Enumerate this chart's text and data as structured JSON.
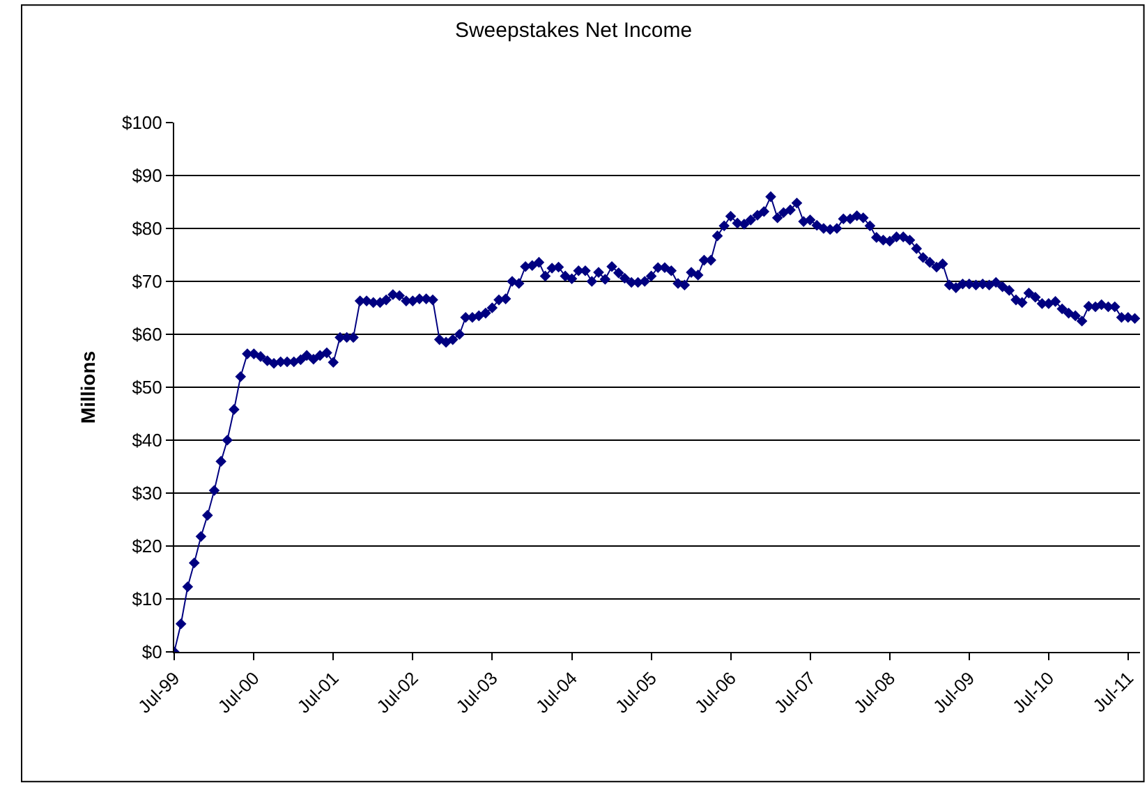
{
  "chart_data": {
    "type": "line",
    "title": "Sweepstakes Net Income",
    "ylabel": "Millions",
    "x": [
      "1999-07",
      "1999-08",
      "1999-09",
      "1999-10",
      "1999-11",
      "1999-12",
      "2000-01",
      "2000-02",
      "2000-03",
      "2000-04",
      "2000-05",
      "2000-06",
      "2000-07",
      "2000-08",
      "2000-09",
      "2000-10",
      "2000-11",
      "2000-12",
      "2001-01",
      "2001-02",
      "2001-03",
      "2001-04",
      "2001-05",
      "2001-06",
      "2001-07",
      "2001-08",
      "2001-09",
      "2001-10",
      "2001-11",
      "2001-12",
      "2002-01",
      "2002-02",
      "2002-03",
      "2002-04",
      "2002-05",
      "2002-06",
      "2002-07",
      "2002-08",
      "2002-09",
      "2002-10",
      "2002-11",
      "2002-12",
      "2003-01",
      "2003-02",
      "2003-03",
      "2003-04",
      "2003-05",
      "2003-06",
      "2003-07",
      "2003-08",
      "2003-09",
      "2003-10",
      "2003-11",
      "2003-12",
      "2004-01",
      "2004-02",
      "2004-03",
      "2004-04",
      "2004-05",
      "2004-06",
      "2004-07",
      "2004-08",
      "2004-09",
      "2004-10",
      "2004-11",
      "2004-12",
      "2005-01",
      "2005-02",
      "2005-03",
      "2005-04",
      "2005-05",
      "2005-06",
      "2005-07",
      "2005-08",
      "2005-09",
      "2005-10",
      "2005-11",
      "2005-12",
      "2006-01",
      "2006-02",
      "2006-03",
      "2006-04",
      "2006-05",
      "2006-06",
      "2006-07",
      "2006-08",
      "2006-09",
      "2006-10",
      "2006-11",
      "2006-12",
      "2007-01",
      "2007-02",
      "2007-03",
      "2007-04",
      "2007-05",
      "2007-06",
      "2007-07",
      "2007-08",
      "2007-09",
      "2007-10",
      "2007-11",
      "2007-12",
      "2008-01",
      "2008-02",
      "2008-03",
      "2008-04",
      "2008-05",
      "2008-06",
      "2008-07",
      "2008-08",
      "2008-09",
      "2008-10",
      "2008-11",
      "2008-12",
      "2009-01",
      "2009-02",
      "2009-03",
      "2009-04",
      "2009-05",
      "2009-06",
      "2009-07",
      "2009-08",
      "2009-09",
      "2009-10",
      "2009-11",
      "2009-12",
      "2010-01",
      "2010-02",
      "2010-03",
      "2010-04",
      "2010-05",
      "2010-06",
      "2010-07",
      "2010-08",
      "2010-09",
      "2010-10",
      "2010-11",
      "2010-12",
      "2011-01",
      "2011-02",
      "2011-03",
      "2011-04",
      "2011-05",
      "2011-06",
      "2011-07",
      "2011-08"
    ],
    "series": [
      {
        "color": "#000080",
        "values": [
          0,
          5.3,
          12.3,
          16.8,
          21.8,
          25.8,
          30.5,
          36,
          40,
          45.8,
          52,
          56.3,
          56.3,
          55.8,
          55,
          54.5,
          54.8,
          54.8,
          54.8,
          55.2,
          56,
          55.3,
          56,
          56.5,
          54.7,
          59.4,
          59.4,
          59.4,
          66.3,
          66.3,
          66,
          66,
          66.5,
          67.5,
          67.3,
          66.3,
          66.3,
          66.7,
          66.7,
          66.5,
          59,
          58.5,
          59,
          60,
          63.2,
          63.2,
          63.5,
          64,
          65,
          66.5,
          66.7,
          70,
          69.6,
          72.8,
          73,
          73.6,
          71,
          72.5,
          72.7,
          71,
          70.5,
          72,
          72,
          70,
          71.7,
          70.4,
          72.8,
          71.6,
          70.6,
          69.8,
          69.8,
          70,
          71,
          72.6,
          72.6,
          72,
          69.6,
          69.3,
          71.7,
          71.2,
          74,
          74,
          78.6,
          80.5,
          82.3,
          81,
          80.8,
          81.6,
          82.5,
          83.2,
          86,
          82,
          83,
          83.5,
          84.8,
          81.3,
          81.6,
          80.6,
          80,
          79.8,
          80,
          81.8,
          81.8,
          82.4,
          82,
          80.5,
          78.3,
          77.8,
          77.6,
          78.4,
          78.4,
          77.8,
          76.2,
          74.5,
          73.6,
          72.7,
          73.3,
          69.3,
          68.8,
          69.5,
          69.5,
          69.3,
          69.5,
          69.3,
          69.8,
          69,
          68.3,
          66.5,
          66,
          67.8,
          67,
          65.8,
          65.8,
          66.2,
          64.8,
          64,
          63.5,
          62.5,
          65.3,
          65.2,
          65.6,
          65.2,
          65.2,
          63.2,
          63.2,
          63
        ]
      }
    ],
    "xlim": [
      "1999-07-01",
      "2011-08-25"
    ],
    "xticks": [
      {
        "value": "1999-07-01",
        "label": "Jul-99"
      },
      {
        "value": "2000-07-01",
        "label": "Jul-00"
      },
      {
        "value": "2001-07-01",
        "label": "Jul-01"
      },
      {
        "value": "2002-07-01",
        "label": "Jul-02"
      },
      {
        "value": "2003-07-01",
        "label": "Jul-03"
      },
      {
        "value": "2004-07-01",
        "label": "Jul-04"
      },
      {
        "value": "2005-07-01",
        "label": "Jul-05"
      },
      {
        "value": "2006-07-01",
        "label": "Jul-06"
      },
      {
        "value": "2007-07-01",
        "label": "Jul-07"
      },
      {
        "value": "2008-07-01",
        "label": "Jul-08"
      },
      {
        "value": "2009-07-01",
        "label": "Jul-09"
      },
      {
        "value": "2010-07-01",
        "label": "Jul-10"
      },
      {
        "value": "2011-07-01",
        "label": "Jul-11"
      }
    ],
    "ylim": [
      0,
      100
    ],
    "yticks": [
      {
        "value": 0,
        "label": "$0"
      },
      {
        "value": 10,
        "label": "$10"
      },
      {
        "value": 20,
        "label": "$20"
      },
      {
        "value": 30,
        "label": "$30"
      },
      {
        "value": 40,
        "label": "$40"
      },
      {
        "value": 50,
        "label": "$50"
      },
      {
        "value": 60,
        "label": "$60"
      },
      {
        "value": 70,
        "label": "$70"
      },
      {
        "value": 80,
        "label": "$80"
      },
      {
        "value": 90,
        "label": "$90"
      },
      {
        "value": 100,
        "label": "$100"
      }
    ],
    "grid": "y",
    "marker": "diamond",
    "line_style": "solid"
  }
}
